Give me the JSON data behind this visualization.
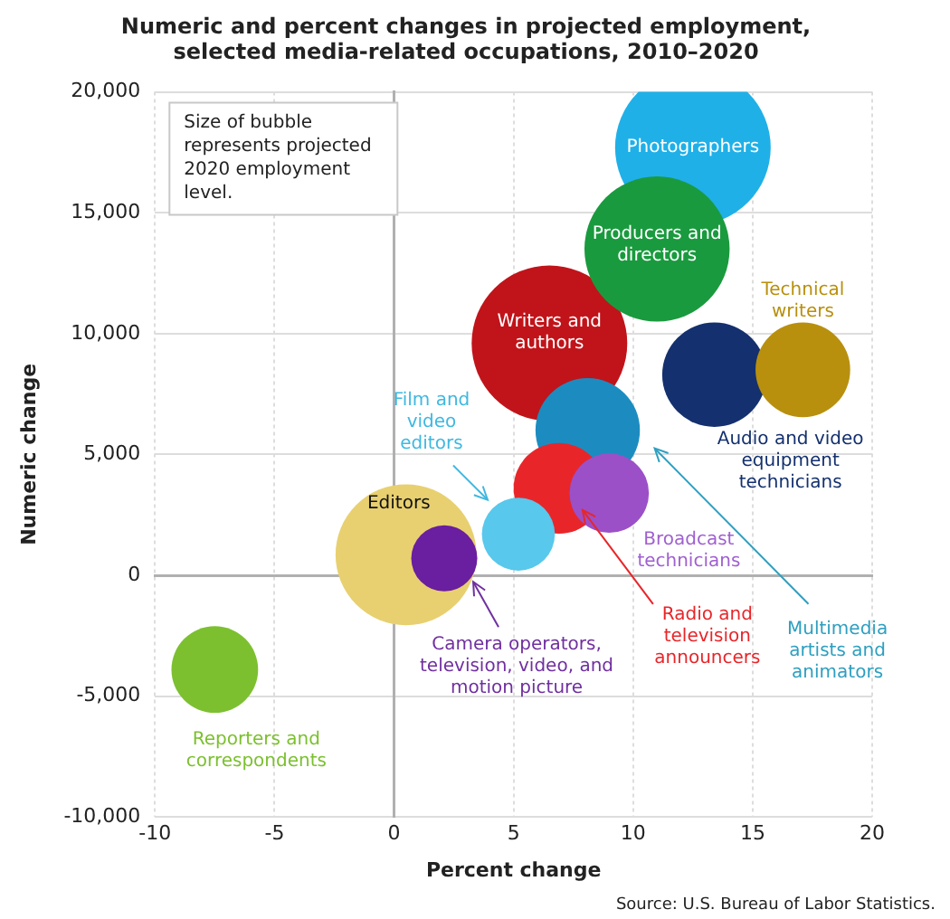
{
  "chart_data": {
    "type": "bubble",
    "title": "Numeric and percent changes in projected employment, selected media-related occupations, 2010–2020",
    "xlabel": "Percent change",
    "ylabel": "Numeric change",
    "xlim": [
      -10,
      20
    ],
    "xticks": [
      -10,
      -5,
      0,
      5,
      10,
      15,
      20
    ],
    "ylim": [
      -10000,
      20000
    ],
    "yticks": [
      {
        "value": -10000,
        "label": "-10,000"
      },
      {
        "value": -5000,
        "label": "-5,000"
      },
      {
        "value": 0,
        "label": "0"
      },
      {
        "value": 5000,
        "label": "5,000"
      },
      {
        "value": 10000,
        "label": "10,000"
      },
      {
        "value": 15000,
        "label": "15,000"
      },
      {
        "value": 20000,
        "label": "20,000"
      }
    ],
    "grid": true,
    "legend": false,
    "series": [
      {
        "name": "Photographers",
        "color": "#1fb0e8",
        "x": [
          12.5
        ],
        "values": [
          17700
        ],
        "sizes": [
          1
        ]
      },
      {
        "name": "Producers and directors",
        "color": "#1a9a3e",
        "x": [
          11.0
        ],
        "values": [
          13500
        ],
        "sizes": [
          0.87
        ]
      },
      {
        "name": "Technical writers",
        "color": "#b8900e",
        "x": [
          17.1
        ],
        "values": [
          8500
        ],
        "sizes": [
          0.37
        ]
      },
      {
        "name": "Audio and video equipment technicians",
        "color": "#14306e",
        "x": [
          13.4
        ],
        "values": [
          8300
        ],
        "sizes": [
          0.45
        ]
      },
      {
        "name": "Writers and authors",
        "color": "#c0141a",
        "x": [
          6.5
        ],
        "values": [
          9600
        ],
        "sizes": [
          1
        ]
      },
      {
        "name": "Multimedia artists and animators",
        "color": "#1c8cc0",
        "x": [
          8.1
        ],
        "values": [
          6000
        ],
        "sizes": [
          0.45
        ]
      },
      {
        "name": "Radio and television announcers",
        "color": "#e8262a",
        "x": [
          6.9
        ],
        "values": [
          3600
        ],
        "sizes": [
          0.34
        ]
      },
      {
        "name": "Broadcast technicians",
        "color": "#9b50c8",
        "x": [
          9.0
        ],
        "values": [
          3400
        ],
        "sizes": [
          0.26
        ]
      },
      {
        "name": "Film and video editors",
        "color": "#58c8ec",
        "x": [
          5.2
        ],
        "values": [
          1700
        ],
        "sizes": [
          0.22
        ]
      },
      {
        "name": "Editors",
        "color": "#e8d070",
        "x": [
          0.5
        ],
        "values": [
          850
        ],
        "sizes": [
          0.82
        ]
      },
      {
        "name": "Camera operators, television, video, and motion picture",
        "color": "#6a1ea0",
        "x": [
          2.1
        ],
        "values": [
          700
        ],
        "sizes": [
          0.18
        ]
      },
      {
        "name": "Reporters and correspondents",
        "color": "#7cc030",
        "x": [
          -7.5
        ],
        "values": [
          -3900
        ],
        "sizes": [
          0.31
        ]
      }
    ],
    "annotations": [
      "Size of bubble represents projected 2020 employment level.",
      "Source: U.S. Bureau of Labor Statistics."
    ]
  }
}
